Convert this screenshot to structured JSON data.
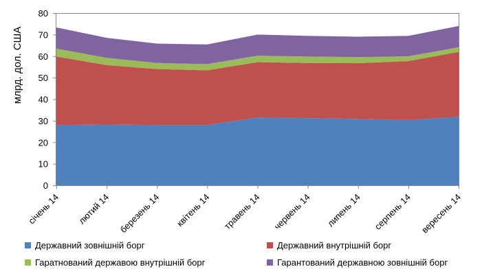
{
  "chart_data": {
    "type": "area",
    "stacked": true,
    "ylabel": "млрд. дол. США",
    "ylim": [
      0,
      80
    ],
    "yticks": [
      0,
      10,
      20,
      30,
      40,
      50,
      60,
      70,
      80
    ],
    "grid": false,
    "legend_position": "bottom",
    "categories": [
      "січень 14",
      "лютий 14",
      "березень 14",
      "квітень 14",
      "травень 14",
      "червень 14",
      "липень 14",
      "серпень 14",
      "вересень 14"
    ],
    "series": [
      {
        "name": "Державний зовнішній борг",
        "color": "#4f81bd",
        "values": [
          28.0,
          28.2,
          28.0,
          28.0,
          31.5,
          31.2,
          30.8,
          30.3,
          31.8
        ]
      },
      {
        "name": "Державний внутрішній борг",
        "color": "#c0504d",
        "values": [
          31.8,
          27.6,
          26.0,
          25.4,
          25.7,
          25.6,
          25.9,
          27.4,
          30.1
        ]
      },
      {
        "name": "Гаратнований державою внутрішній борг",
        "color": "#9bbb59",
        "values": [
          3.7,
          3.4,
          2.8,
          2.9,
          3.0,
          3.0,
          2.8,
          2.2,
          2.2
        ]
      },
      {
        "name": "Гарантований державною зовнішній борг",
        "color": "#8064a2",
        "values": [
          9.8,
          9.3,
          9.0,
          9.1,
          9.8,
          9.6,
          9.5,
          9.5,
          9.9
        ]
      }
    ]
  }
}
